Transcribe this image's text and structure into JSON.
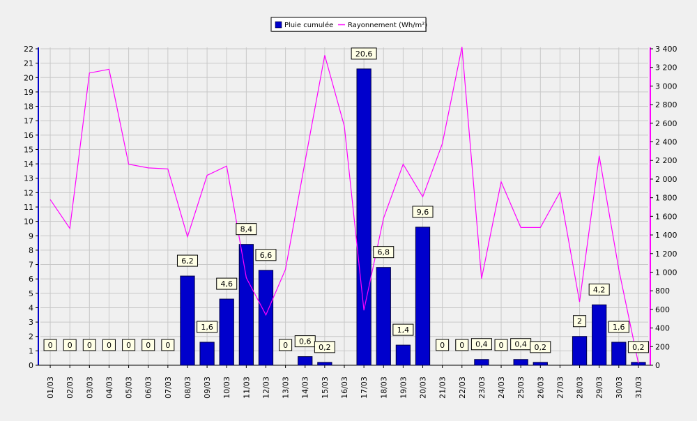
{
  "chart_data": {
    "type": "bar",
    "categories": [
      "01/03",
      "02/03",
      "03/03",
      "04/03",
      "05/03",
      "06/03",
      "07/03",
      "08/03",
      "09/03",
      "10/03",
      "11/03",
      "12/03",
      "13/03",
      "14/03",
      "15/03",
      "16/03",
      "17/03",
      "18/03",
      "19/03",
      "20/03",
      "21/03",
      "22/03",
      "23/03",
      "24/03",
      "25/03",
      "26/03",
      "27/03",
      "28/03",
      "29/03",
      "30/03",
      "31/03"
    ],
    "series": [
      {
        "name": "Pluie cumulée",
        "type": "bar",
        "axis": "left",
        "color": "#0000cc",
        "values": [
          0,
          0,
          0,
          0,
          0,
          0,
          0,
          6.2,
          1.6,
          4.6,
          8.4,
          6.6,
          0,
          0.6,
          0.2,
          null,
          20.6,
          6.8,
          1.4,
          9.6,
          0,
          0,
          0.4,
          0,
          0.4,
          0.2,
          null,
          2,
          4.2,
          1.6,
          0.2
        ],
        "labels": [
          "0",
          "0",
          "0",
          "0",
          "0",
          "0",
          "0",
          "6,2",
          "1,6",
          "4,6",
          "8,4",
          "6,6",
          "0",
          "0,6",
          "0,2",
          "",
          "20,6",
          "6,8",
          "1,4",
          "9,6",
          "0",
          "0",
          "0,4",
          "0",
          "0,4",
          "0,2",
          "",
          "2",
          "4,2",
          "1,6",
          "0,2"
        ]
      },
      {
        "name": "Rayonnement (Wh/m²)",
        "type": "line",
        "axis": "right",
        "color": "#ff00ff",
        "values": [
          1780,
          1470,
          3140,
          3180,
          2160,
          2120,
          2110,
          1380,
          2040,
          2140,
          940,
          540,
          1030,
          2190,
          3330,
          2570,
          590,
          1580,
          2160,
          1810,
          2380,
          3420,
          930,
          1970,
          1480,
          1480,
          1860,
          680,
          2250,
          1030,
          20
        ]
      }
    ],
    "y_left": {
      "ylim": [
        0,
        22
      ],
      "ticks": [
        "0",
        "1",
        "2",
        "3",
        "4",
        "5",
        "6",
        "7",
        "8",
        "9",
        "10",
        "11",
        "12",
        "13",
        "14",
        "15",
        "16",
        "17",
        "18",
        "19",
        "20",
        "21",
        "22"
      ]
    },
    "y_right": {
      "ylim": [
        0,
        3400
      ],
      "ticks": [
        "0",
        "200",
        "400",
        "600",
        "800",
        "1 000",
        "1 200",
        "1 400",
        "1 600",
        "1 800",
        "2 000",
        "2 200",
        "2 400",
        "2 600",
        "2 800",
        "3 000",
        "3 200",
        "3 400"
      ]
    },
    "grid": true,
    "legend": "top-center",
    "colors": {
      "background": "#f0f0f0",
      "grid": "#c8c8c8",
      "left_axis": "#0000cc",
      "right_axis": "#ff00ff",
      "label_box": "#ffffe6"
    }
  }
}
